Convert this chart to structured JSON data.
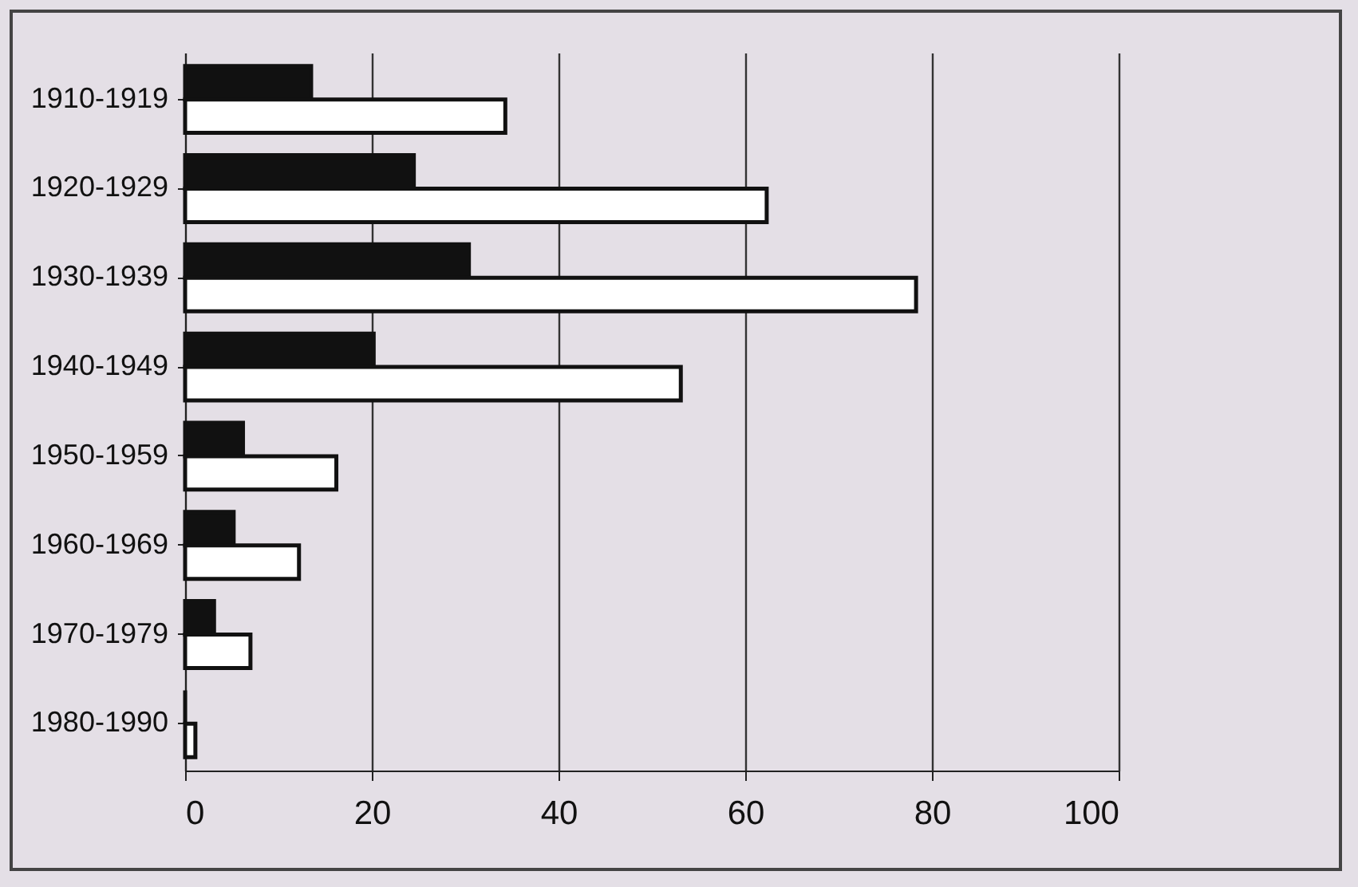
{
  "chart_data": {
    "type": "bar",
    "orientation": "horizontal",
    "categories": [
      "1910-1919",
      "1920-1929",
      "1930-1939",
      "1940-1949",
      "1950-1959",
      "1960-1969",
      "1970-1979",
      "1980-1990"
    ],
    "series": [
      {
        "color": "#111111",
        "values": [
          13.5,
          24.5,
          30.4,
          20.2,
          6.2,
          5.2,
          3.1,
          0
        ]
      },
      {
        "color": "#ffffff",
        "values": [
          34.3,
          62.3,
          78.3,
          53.1,
          16.2,
          12.2,
          7,
          1.1
        ]
      }
    ],
    "xlim": [
      0,
      100
    ],
    "xticks": [
      0,
      20,
      40,
      60,
      80,
      100
    ],
    "grid": "x"
  }
}
